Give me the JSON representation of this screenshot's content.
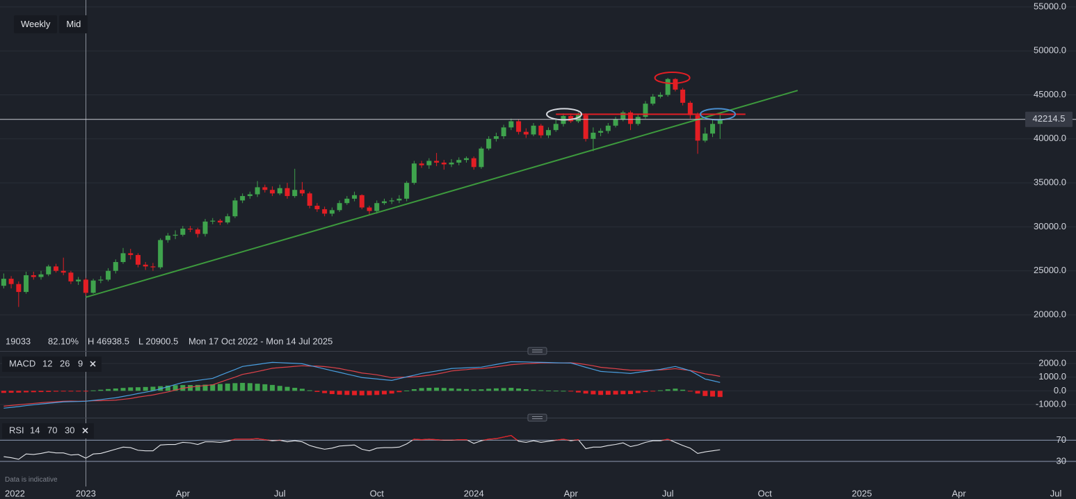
{
  "toolbar": {
    "buttons": [
      "Weekly",
      "Mid"
    ]
  },
  "info": [
    {
      "text": "19033",
      "color": "#4a9fe0"
    },
    {
      "text": "82.10%",
      "color": "#4a9fe0"
    },
    {
      "text": "H 46938.5",
      "color": "#e6e8ec"
    },
    {
      "text": "L 20900.5",
      "color": "#e6e8ec"
    },
    {
      "text": "Mon 17 Oct 2022 - Mon 14 Jul 2025",
      "color": "#8b909a"
    }
  ],
  "footer": "Data is indicative",
  "chart_data": [
    {
      "type": "candlestick",
      "up_color": "#3fa34d",
      "down_color": "#e31e24",
      "open": [
        23300,
        24100,
        23500,
        22600,
        24500,
        24300,
        24600,
        25500,
        25000,
        24800,
        23800,
        24000,
        22500,
        23900,
        24000,
        25000,
        26000,
        27000,
        26800,
        25700,
        25500,
        25400,
        28500,
        29000,
        29100,
        29800,
        29700,
        29200,
        30600,
        30700,
        30500,
        31200,
        33000,
        33500,
        33700,
        34500,
        34200,
        33800,
        34400,
        33500,
        34200,
        33800,
        32400,
        32000,
        31500,
        31900,
        32700,
        33200,
        33600,
        32200,
        31800,
        32700,
        32900,
        33000,
        33200,
        35000,
        37200,
        37000,
        37500,
        37300,
        37100,
        37300,
        37600,
        37800,
        36800,
        38900,
        40000,
        40300,
        41300,
        42000,
        40800,
        40500,
        41500,
        40400,
        41000,
        41700,
        42600,
        42000,
        42700,
        40000,
        40700,
        40900,
        41500,
        42200,
        43000,
        41700,
        42500,
        44000,
        44800,
        45000,
        46800,
        45600,
        44100,
        42700,
        39800,
        40600,
        41700
      ],
      "high": [
        24700,
        24400,
        23800,
        24900,
        24900,
        25000,
        25700,
        25800,
        26500,
        25000,
        24300,
        24200,
        24100,
        24400,
        25300,
        26300,
        27600,
        27500,
        27000,
        26000,
        25900,
        28700,
        29300,
        29600,
        30100,
        30100,
        29900,
        30900,
        31000,
        30900,
        31500,
        33300,
        33800,
        34000,
        35200,
        34800,
        34600,
        34800,
        35000,
        36600,
        35100,
        34000,
        32700,
        32300,
        32200,
        33000,
        33500,
        34000,
        33700,
        32400,
        33000,
        33200,
        33300,
        33600,
        35200,
        37500,
        37500,
        37800,
        38400,
        37600,
        37700,
        37900,
        38000,
        38000,
        39100,
        40300,
        40700,
        41600,
        42300,
        42200,
        41200,
        41800,
        41700,
        41300,
        42200,
        42900,
        42900,
        43000,
        42900,
        41300,
        41200,
        41800,
        42500,
        43200,
        43200,
        42800,
        44300,
        45100,
        45300,
        46938.5,
        46900,
        45800,
        44300,
        43000,
        41300,
        42200,
        42800
      ],
      "low": [
        23000,
        23000,
        20900.5,
        22400,
        24000,
        24000,
        24400,
        24800,
        24500,
        23500,
        23400,
        22200,
        22400,
        23600,
        23800,
        24700,
        25800,
        26300,
        25400,
        25100,
        25000,
        25200,
        28200,
        28600,
        28900,
        29400,
        28800,
        28900,
        30300,
        30200,
        30300,
        31000,
        32700,
        33200,
        33400,
        33900,
        33500,
        33600,
        33200,
        33300,
        33500,
        32100,
        31700,
        31200,
        31200,
        31700,
        32500,
        32900,
        32000,
        31300,
        31500,
        32500,
        32600,
        32700,
        32900,
        34800,
        36700,
        36600,
        36900,
        36500,
        36800,
        37000,
        37300,
        36500,
        36600,
        38700,
        39700,
        40000,
        41000,
        40500,
        40100,
        40300,
        40100,
        40100,
        40800,
        41400,
        41800,
        41800,
        39700,
        38600,
        40300,
        40600,
        41300,
        42000,
        41000,
        41500,
        42300,
        43800,
        44600,
        44800,
        45400,
        43800,
        42300,
        38300,
        39600,
        40200,
        40000
      ],
      "close": [
        24100,
        23500,
        22600,
        24500,
        24300,
        24600,
        25500,
        25000,
        24800,
        23800,
        24000,
        22500,
        23900,
        24000,
        25000,
        26000,
        27000,
        26800,
        25700,
        25500,
        25400,
        28500,
        29000,
        29100,
        29800,
        29700,
        29200,
        30600,
        30700,
        30500,
        31200,
        33000,
        33500,
        33700,
        34500,
        34200,
        33800,
        34400,
        33500,
        34200,
        33800,
        32400,
        32000,
        31500,
        31900,
        32700,
        33200,
        33600,
        32200,
        31800,
        32700,
        32900,
        33000,
        33200,
        35000,
        37200,
        37000,
        37500,
        37300,
        37100,
        37300,
        37600,
        37800,
        36800,
        38900,
        40000,
        40300,
        41300,
        42000,
        40800,
        40500,
        41500,
        40400,
        41000,
        41700,
        42600,
        42000,
        42700,
        40000,
        40700,
        40900,
        41500,
        42200,
        43000,
        41700,
        42500,
        44000,
        44800,
        45000,
        46800,
        45600,
        44100,
        42700,
        39800,
        40600,
        41700,
        42214.5
      ],
      "xlim": [
        -0.5,
        143.7
      ],
      "xticks": [
        {
          "value": 1.5,
          "label": "2022"
        },
        {
          "value": 11,
          "label": "2023"
        },
        {
          "value": 24,
          "label": "Apr"
        },
        {
          "value": 37,
          "label": "Jul"
        },
        {
          "value": 50,
          "label": "Oct"
        },
        {
          "value": 63,
          "label": "2024"
        },
        {
          "value": 76,
          "label": "Apr"
        },
        {
          "value": 89,
          "label": "Jul"
        },
        {
          "value": 102,
          "label": "Oct"
        },
        {
          "value": 115,
          "label": "2025"
        },
        {
          "value": 128,
          "label": "Apr"
        },
        {
          "value": 141,
          "label": "Jul"
        }
      ],
      "ylim": [
        15892,
        55783
      ],
      "yticks": [
        {
          "value": 20000,
          "label": "20000.0"
        },
        {
          "value": 25000,
          "label": "25000.0"
        },
        {
          "value": 30000,
          "label": "30000.0"
        },
        {
          "value": 35000,
          "label": "35000.0"
        },
        {
          "value": 40000,
          "label": "40000.0"
        },
        {
          "value": 45000,
          "label": "45000.0"
        },
        {
          "value": 50000,
          "label": "50000.0"
        },
        {
          "value": 55000,
          "label": "55000.0"
        }
      ],
      "grid": true,
      "trendlines": [
        {
          "color": "#3d9a3d",
          "x": [
            11,
            106.4
          ],
          "y": [
            22000,
            45500
          ]
        },
        {
          "color": "#e31e24",
          "x": [
            74,
            99.4
          ],
          "y": [
            42800,
            42800
          ]
        }
      ],
      "highlights": [
        {
          "color": "#d6d9df",
          "x": 75.1,
          "y": 42800
        },
        {
          "color": "#e31e24",
          "x": 89.6,
          "y": 46940
        },
        {
          "color": "#4a8fd0",
          "x": 95.7,
          "y": 42800
        }
      ]
    },
    {
      "type": "macd",
      "title": "MACD",
      "params": [
        12,
        26,
        9
      ],
      "macd": {
        "color": "#4a9fe0",
        "values": [
          -1270,
          -1210,
          -1150,
          -1080,
          -1020,
          -960,
          -910,
          -860,
          -810,
          -790,
          -780,
          -760,
          -700,
          -640,
          -570,
          -510,
          -410,
          -310,
          -200,
          -100,
          0,
          150,
          300,
          460,
          610,
          690,
          760,
          840,
          910,
          1130,
          1350,
          1560,
          1780,
          1860,
          1930,
          2010,
          2080,
          2060,
          2030,
          2010,
          1980,
          1850,
          1730,
          1600,
          1470,
          1350,
          1220,
          1100,
          970,
          920,
          870,
          810,
          760,
          890,
          1020,
          1140,
          1270,
          1360,
          1450,
          1540,
          1630,
          1660,
          1680,
          1710,
          1730,
          1830,
          1930,
          2030,
          2130,
          2120,
          2110,
          2090,
          2080,
          2070,
          2050,
          2040,
          2030,
          1880,
          1720,
          1570,
          1420,
          1380,
          1350,
          1310,
          1270,
          1350,
          1420,
          1500,
          1570,
          1680,
          1780,
          1630,
          1470,
          1170,
          860,
          740,
          610
        ]
      },
      "signal": {
        "color": "#e0424a",
        "values": [
          -1120,
          -1070,
          -1020,
          -970,
          -920,
          -870,
          -830,
          -800,
          -760,
          -750,
          -760,
          -750,
          -730,
          -720,
          -700,
          -680,
          -620,
          -560,
          -460,
          -380,
          -300,
          -190,
          -80,
          50,
          190,
          270,
          330,
          390,
          440,
          630,
          820,
          1000,
          1200,
          1300,
          1410,
          1530,
          1650,
          1700,
          1740,
          1790,
          1830,
          1810,
          1810,
          1770,
          1710,
          1630,
          1520,
          1420,
          1300,
          1240,
          1170,
          1070,
          960,
          990,
          1000,
          1020,
          1070,
          1140,
          1220,
          1330,
          1450,
          1510,
          1550,
          1610,
          1620,
          1680,
          1750,
          1830,
          1910,
          1950,
          1990,
          2010,
          2040,
          2050,
          2040,
          2040,
          2050,
          2000,
          1920,
          1830,
          1720,
          1670,
          1620,
          1560,
          1510,
          1510,
          1510,
          1520,
          1530,
          1570,
          1620,
          1550,
          1490,
          1370,
          1240,
          1160,
          1060
        ]
      },
      "histogram": {
        "up_color": "#3fa34d",
        "down_color": "#e31e24",
        "values": [
          -150,
          -140,
          -130,
          -110,
          -100,
          -90,
          -80,
          -60,
          -50,
          -40,
          -20,
          -10,
          30,
          80,
          130,
          170,
          210,
          250,
          260,
          280,
          300,
          340,
          380,
          410,
          420,
          420,
          430,
          450,
          470,
          500,
          530,
          560,
          580,
          560,
          520,
          480,
          430,
          360,
          290,
          220,
          150,
          40,
          -80,
          -170,
          -240,
          -280,
          -300,
          -320,
          -330,
          -320,
          -300,
          -260,
          -200,
          -100,
          20,
          120,
          200,
          220,
          230,
          210,
          180,
          150,
          130,
          100,
          110,
          150,
          180,
          200,
          220,
          170,
          120,
          80,
          40,
          20,
          10,
          0,
          -20,
          -120,
          -200,
          -260,
          -300,
          -290,
          -270,
          -250,
          -240,
          -160,
          -90,
          -20,
          40,
          110,
          160,
          80,
          -20,
          -200,
          -380,
          -420,
          -450
        ]
      },
      "ylim": [
        -1914,
        2812
      ],
      "yticks": [
        {
          "value": 2000,
          "label": "2000.0"
        },
        {
          "value": 1000,
          "label": "1000.0"
        },
        {
          "value": 0,
          "label": "0.0"
        },
        {
          "value": -1000,
          "label": "-1000.0"
        }
      ],
      "grid": true
    },
    {
      "type": "rsi",
      "title": "RSI",
      "params": [
        14,
        70,
        30
      ],
      "color": "#e6e8ec",
      "overbought_color": "#e31e24",
      "values": [
        39,
        37,
        34,
        44,
        43,
        45,
        48,
        46,
        46,
        42,
        43,
        36,
        44,
        45,
        49,
        53,
        57,
        56,
        51,
        50,
        50,
        61,
        62,
        62,
        66,
        65,
        62,
        67,
        67,
        66,
        68,
        72,
        72,
        72,
        73,
        71,
        69,
        70,
        67,
        69,
        67,
        60,
        56,
        53,
        55,
        59,
        60,
        61,
        53,
        50,
        55,
        56,
        56,
        57,
        63,
        72,
        71,
        72,
        71,
        70,
        70,
        71,
        71,
        64,
        69,
        72,
        73,
        76,
        79,
        68,
        66,
        69,
        66,
        68,
        70,
        72,
        69,
        71,
        54,
        57,
        57,
        60,
        62,
        65,
        58,
        61,
        66,
        69,
        69,
        72,
        66,
        60,
        55,
        45,
        48,
        50,
        52
      ],
      "ylim": [
        -17.5,
        110
      ],
      "yticks": [
        70,
        30
      ],
      "grid": true
    }
  ]
}
